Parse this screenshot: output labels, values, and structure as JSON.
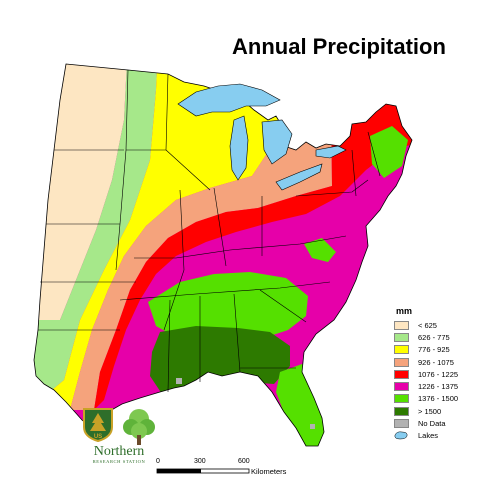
{
  "title": "Annual Precipitation",
  "legend": {
    "title": "mm",
    "items": [
      {
        "label": "< 625",
        "color": "#fde6c2"
      },
      {
        "label": "626 - 775",
        "color": "#a6e88a"
      },
      {
        "label": "776 - 925",
        "color": "#ffff00"
      },
      {
        "label": "926 - 1075",
        "color": "#f5a37c"
      },
      {
        "label": "1076 - 1225",
        "color": "#ff0000"
      },
      {
        "label": "1226 - 1375",
        "color": "#e600a9"
      },
      {
        "label": "1376 - 1500",
        "color": "#55e000"
      },
      {
        "label": "> 1500",
        "color": "#2d7a00"
      },
      {
        "label": "No Data",
        "color": "#b2b2b2"
      }
    ],
    "lakes_label": "Lakes",
    "lakes_color": "#87cdf0"
  },
  "scale": {
    "ticks": [
      "0",
      "300",
      "600"
    ],
    "unit": "Kilometers"
  },
  "logos": {
    "shield_text": "US",
    "org_name": "Northern",
    "org_sub": "RESEARCH STATION"
  }
}
